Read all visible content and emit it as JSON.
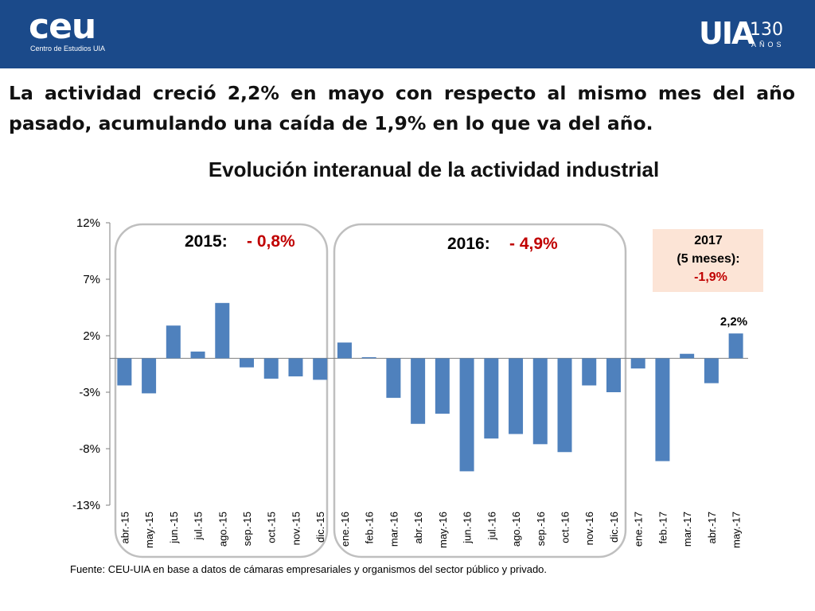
{
  "header": {
    "left_logo_text": "ceu",
    "left_logo_subtext": "Centro de Estudios UIA",
    "right_logo_text": "UIA",
    "right_logo_number": "130",
    "right_logo_subtext": "AÑOS",
    "bar_color": "#1b4a8a"
  },
  "headline": "La actividad creció 2,2% en mayo con respecto al mismo mes del año pasado, acumulando una caída de 1,9% en lo que va del año.",
  "chart_data": {
    "type": "bar",
    "title": "Evolución interanual de la actividad industrial",
    "xlabel": "",
    "ylabel": "",
    "ylim": [
      -13,
      12
    ],
    "yticks": [
      12,
      7,
      2,
      -3,
      -8,
      -13
    ],
    "ytick_labels": [
      "12%",
      "7%",
      "2%",
      "-3%",
      "-8%",
      "-13%"
    ],
    "categories": [
      "abr.-15",
      "may.-15",
      "jun.-15",
      "jul.-15",
      "ago.-15",
      "sep.-15",
      "oct.-15",
      "nov.-15",
      "dic.-15",
      "ene.-16",
      "feb.-16",
      "mar.-16",
      "abr.-16",
      "may.-16",
      "jun.-16",
      "jul.-16",
      "ago.-16",
      "sep.-16",
      "oct.-16",
      "nov.-16",
      "dic.-16",
      "ene.-17",
      "feb.-17",
      "mar.-17",
      "abr.-17",
      "may.-17"
    ],
    "values": [
      -2.4,
      -3.1,
      2.9,
      0.6,
      4.9,
      -0.8,
      -1.8,
      -1.6,
      -1.9,
      1.4,
      0.1,
      -3.5,
      -5.8,
      -4.9,
      -10.0,
      -7.1,
      -6.7,
      -7.6,
      -8.3,
      -2.4,
      -3.0,
      -0.9,
      -9.1,
      0.4,
      -2.2,
      2.2
    ],
    "bar_color": "#4f81bd",
    "annotations": {
      "y2015_label": "2015:",
      "y2015_value": "- 0,8%",
      "y2016_label": "2016:",
      "y2016_value": "- 4,9%",
      "y2017_line1": "2017",
      "y2017_line2": "(5 meses):",
      "y2017_value": "-1,9%",
      "last_bar_label": "2,2%",
      "value_color": "#c00000",
      "box_fill": "#fce4d6"
    }
  },
  "source": "Fuente: CEU-UIA en base a datos de cámaras empresariales y organismos del sector público y privado."
}
